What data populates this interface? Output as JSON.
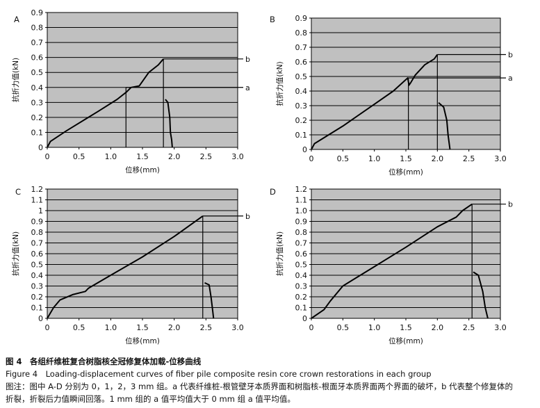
{
  "chart_data": [
    {
      "type": "line",
      "panel_label": "A",
      "xlabel": "位移(mm)",
      "ylabel": "抗折力值(kN)",
      "xlim": [
        0,
        3.0
      ],
      "ylim": [
        0,
        0.9
      ],
      "x_ticks": [
        "0",
        "0.5",
        "1.0",
        "1.5",
        "2.0",
        "2.5",
        "3.0"
      ],
      "y_ticks": [
        "0",
        "0.1",
        "0.2",
        "0.3",
        "0.4",
        "0.5",
        "0.6",
        "0.7",
        "0.8",
        "0.9"
      ],
      "grid": true,
      "series": [
        {
          "x": [
            0,
            0.05,
            0.3,
            0.8,
            1.1,
            1.25,
            1.32,
            1.45,
            1.6,
            1.75,
            1.83
          ],
          "y": [
            0,
            0.04,
            0.11,
            0.24,
            0.32,
            0.37,
            0.4,
            0.41,
            0.5,
            0.55,
            0.59
          ]
        },
        {
          "x": [
            1.86,
            1.9,
            1.93,
            1.94,
            1.96,
            1.97
          ],
          "y": [
            0.32,
            0.3,
            0.2,
            0.1,
            0.05,
            0
          ]
        }
      ],
      "markers": [
        {
          "label": "a",
          "x": 1.24,
          "y": 0.4
        },
        {
          "label": "b",
          "x": 1.83,
          "y": 0.59
        }
      ]
    },
    {
      "type": "line",
      "panel_label": "B",
      "xlabel": "位移(mm)",
      "ylabel": "抗折力值(kN)",
      "xlim": [
        0,
        3.0
      ],
      "ylim": [
        0,
        0.9
      ],
      "x_ticks": [
        "0",
        "0.5",
        "1.0",
        "1.5",
        "2.0",
        "2.5",
        "3.0"
      ],
      "y_ticks": [
        "0",
        "0.1",
        "0.2",
        "0.3",
        "0.4",
        "0.5",
        "0.6",
        "0.7",
        "0.8",
        "0.9"
      ],
      "grid": true,
      "series": [
        {
          "x": [
            0,
            0.05,
            0.5,
            1.0,
            1.3,
            1.53,
            1.55,
            1.58,
            1.65,
            1.8,
            1.95,
            2.0
          ],
          "y": [
            0,
            0.04,
            0.16,
            0.31,
            0.4,
            0.49,
            0.44,
            0.46,
            0.51,
            0.58,
            0.62,
            0.65
          ]
        },
        {
          "x": [
            2.02,
            2.1,
            2.15,
            2.17,
            2.2
          ],
          "y": [
            0.32,
            0.29,
            0.2,
            0.1,
            0
          ]
        }
      ],
      "markers": [
        {
          "label": "a",
          "x": 1.54,
          "y": 0.49
        },
        {
          "label": "b",
          "x": 2.0,
          "y": 0.65
        }
      ]
    },
    {
      "type": "line",
      "panel_label": "C",
      "xlabel": "位移(mm)",
      "ylabel": "抗折力值(kN)",
      "xlim": [
        0,
        3.0
      ],
      "ylim": [
        0,
        1.2
      ],
      "x_ticks": [
        "0",
        "0.5",
        "1.0",
        "1.5",
        "2.0",
        "2.5",
        "3.0"
      ],
      "y_ticks": [
        "0",
        "0.1",
        "0.2",
        "0.3",
        "0.4",
        "0.5",
        "0.6",
        "0.7",
        "0.8",
        "0.9",
        "1",
        "1.1",
        "1.2"
      ],
      "grid": true,
      "series": [
        {
          "x": [
            0,
            0.1,
            0.2,
            0.4,
            0.6,
            0.65,
            1.0,
            1.5,
            2.0,
            2.45
          ],
          "y": [
            0,
            0.1,
            0.17,
            0.22,
            0.25,
            0.28,
            0.4,
            0.57,
            0.76,
            0.95
          ]
        },
        {
          "x": [
            2.48,
            2.55,
            2.58,
            2.6,
            2.62
          ],
          "y": [
            0.33,
            0.31,
            0.2,
            0.1,
            0
          ]
        }
      ],
      "markers": [
        {
          "label": "b",
          "x": 2.45,
          "y": 0.95
        }
      ]
    },
    {
      "type": "line",
      "panel_label": "D",
      "xlabel": "位移(mm)",
      "ylabel": "抗折力值(kN)",
      "xlim": [
        0,
        3.0
      ],
      "ylim": [
        0,
        1.2
      ],
      "x_ticks": [
        "0",
        "0.5",
        "1.0",
        "1.5",
        "2.0",
        "2.5",
        "3.0"
      ],
      "y_ticks": [
        "0",
        "0.1",
        "0.2",
        "0.3",
        "0.4",
        "0.5",
        "0.6",
        "0.7",
        "0.8",
        "0.9",
        "1.0",
        "1.1",
        "1.2"
      ],
      "grid": true,
      "series": [
        {
          "x": [
            0,
            0.2,
            0.3,
            0.5,
            1.0,
            1.5,
            2.0,
            2.3,
            2.4,
            2.55
          ],
          "y": [
            0,
            0.08,
            0.16,
            0.3,
            0.48,
            0.66,
            0.85,
            0.94,
            1.0,
            1.06
          ]
        },
        {
          "x": [
            2.57,
            2.65,
            2.72,
            2.76,
            2.8
          ],
          "y": [
            0.43,
            0.4,
            0.25,
            0.1,
            0
          ]
        }
      ],
      "markers": [
        {
          "label": "b",
          "x": 2.55,
          "y": 1.06
        }
      ]
    }
  ],
  "caption": {
    "line1": "图 4　各组纤维桩复合树脂核全冠修复体加载-位移曲线",
    "line2": "Figure 4　Loading-displacement curves of fiber pile composite resin core crown restorations in each group",
    "line3": "图注：图中 A-D 分别为 0，1，2，3 mm 组。a 代表纤维桩-根管壁牙本质界面和树脂核-根面牙本质界面两个界面的破坏，b 代表整个修复体的",
    "line4": "折裂，折裂后力值瞬间回落。1 mm 组的 a 值平均值大于 0 mm 组 a 值平均值。"
  }
}
